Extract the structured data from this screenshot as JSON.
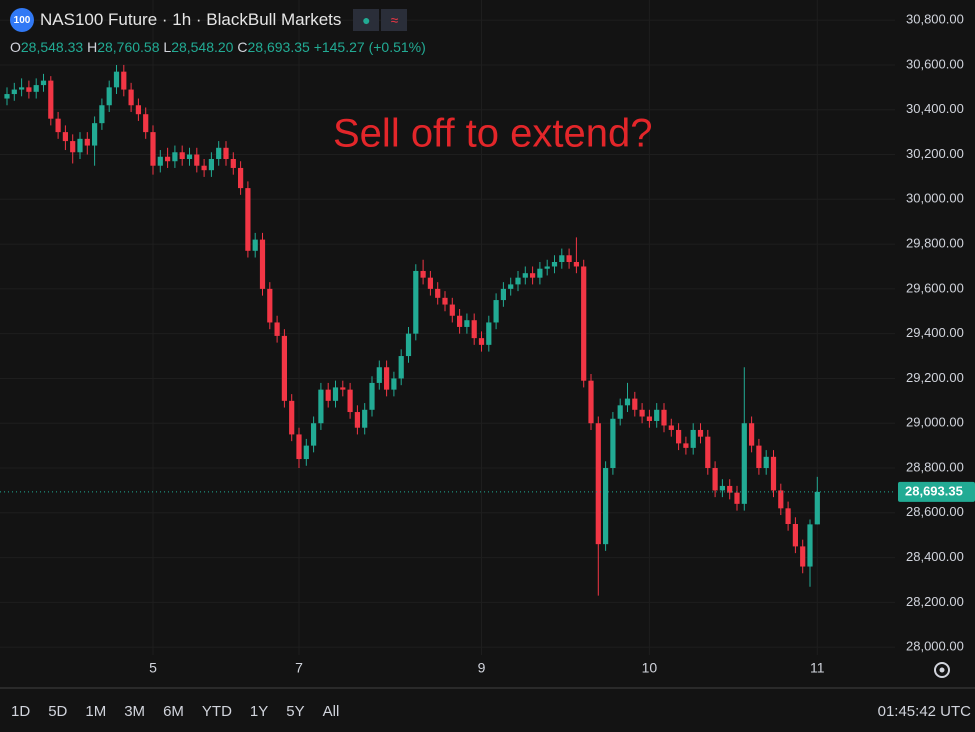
{
  "header": {
    "badge": "100",
    "title": "NAS100 Future · 1h · BlackBull Markets",
    "open_label": "O",
    "open": "28,548.33",
    "high_label": "H",
    "high": "28,760.58",
    "low_label": "L",
    "low": "28,548.20",
    "close_label": "C",
    "close": "28,693.35",
    "change": "+145.27 (+0.51%)"
  },
  "toolbar": {
    "ranges": [
      "1D",
      "5D",
      "1M",
      "3M",
      "6M",
      "YTD",
      "1Y",
      "5Y",
      "All"
    ],
    "clock": "01:45:42 UTC"
  },
  "chart_data": {
    "type": "candlestick",
    "annotation": "Sell off to extend?",
    "up_color": "#22ab94",
    "down_color": "#f23645",
    "grid": true,
    "last_price_line": true,
    "ylim": [
      27965,
      30890
    ],
    "yticks": [
      {
        "value": 28000,
        "label": "28,000.00"
      },
      {
        "value": 28200,
        "label": "28,200.00"
      },
      {
        "value": 28400,
        "label": "28,400.00"
      },
      {
        "value": 28600,
        "label": "28,600.00"
      },
      {
        "value": 28800,
        "label": "28,800.00"
      },
      {
        "value": 29000,
        "label": "29,000.00"
      },
      {
        "value": 29200,
        "label": "29,200.00"
      },
      {
        "value": 29400,
        "label": "29,400.00"
      },
      {
        "value": 29600,
        "label": "29,600.00"
      },
      {
        "value": 29800,
        "label": "29,800.00"
      },
      {
        "value": 30000,
        "label": "30,000.00"
      },
      {
        "value": 30200,
        "label": "30,200.00"
      },
      {
        "value": 30400,
        "label": "30,400.00"
      },
      {
        "value": 30600,
        "label": "30,600.00"
      },
      {
        "value": 30800,
        "label": "30,800.00"
      }
    ],
    "categories": [
      null,
      null,
      null,
      null,
      null,
      null,
      null,
      null,
      null,
      null,
      null,
      null,
      null,
      null,
      null,
      null,
      null,
      null,
      null,
      null,
      "5",
      null,
      null,
      null,
      null,
      null,
      null,
      null,
      null,
      null,
      null,
      null,
      null,
      null,
      null,
      null,
      null,
      null,
      null,
      null,
      "7",
      null,
      null,
      null,
      null,
      null,
      null,
      null,
      null,
      null,
      null,
      null,
      null,
      null,
      null,
      null,
      null,
      null,
      null,
      null,
      null,
      null,
      null,
      null,
      null,
      "9",
      null,
      null,
      null,
      null,
      null,
      null,
      null,
      null,
      null,
      null,
      null,
      null,
      null,
      null,
      null,
      null,
      null,
      null,
      null,
      null,
      null,
      null,
      "10",
      null,
      null,
      null,
      null,
      null,
      null,
      null,
      null,
      null,
      null,
      null,
      null,
      null,
      null,
      null,
      null,
      null,
      null,
      null,
      null,
      null,
      null,
      "11"
    ],
    "open": [
      30450,
      30470,
      30490,
      30500,
      30480,
      30510,
      30530,
      30360,
      30300,
      30260,
      30210,
      30270,
      30240,
      30340,
      30420,
      30500,
      30570,
      30490,
      30420,
      30380,
      30300,
      30150,
      30190,
      30170,
      30210,
      30180,
      30200,
      30150,
      30130,
      30180,
      30230,
      30180,
      30140,
      30050,
      29770,
      29820,
      29600,
      29450,
      29390,
      29100,
      28950,
      28840,
      28900,
      29000,
      29150,
      29100,
      29160,
      29150,
      29050,
      28980,
      29060,
      29180,
      29250,
      29150,
      29200,
      29300,
      29400,
      29680,
      29650,
      29600,
      29560,
      29530,
      29480,
      29430,
      29460,
      29380,
      29350,
      29450,
      29550,
      29600,
      29620,
      29650,
      29670,
      29650,
      29690,
      29700,
      29720,
      29750,
      29720,
      29700,
      29190,
      29000,
      28460,
      28800,
      29020,
      29080,
      29110,
      29060,
      29030,
      29010,
      29060,
      28990,
      28970,
      28910,
      28890,
      28970,
      28940,
      28800,
      28700,
      28720,
      28690,
      28640,
      29000,
      28900,
      28800,
      28850,
      28700,
      28620,
      28550,
      28450,
      28360,
      28548.33
    ],
    "high": [
      30500,
      30520,
      30540,
      30530,
      30540,
      30560,
      30550,
      30390,
      30330,
      30290,
      30300,
      30300,
      30370,
      30450,
      30530,
      30600,
      30600,
      30520,
      30450,
      30410,
      30330,
      30220,
      30230,
      30240,
      30240,
      30230,
      30230,
      30180,
      30210,
      30260,
      30260,
      30210,
      30170,
      30080,
      29850,
      29850,
      29630,
      29480,
      29420,
      29130,
      28980,
      28930,
      29030,
      29180,
      29180,
      29190,
      29190,
      29180,
      29080,
      29090,
      29210,
      29280,
      29280,
      29230,
      29330,
      29430,
      29710,
      29730,
      29680,
      29630,
      29590,
      29560,
      29510,
      29490,
      29490,
      29410,
      29480,
      29580,
      29630,
      29650,
      29680,
      29700,
      29700,
      29720,
      29730,
      29750,
      29780,
      29780,
      29830,
      29730,
      29220,
      29030,
      28830,
      29050,
      29110,
      29180,
      29140,
      29090,
      29060,
      29090,
      29090,
      29020,
      29000,
      28940,
      29000,
      29000,
      28970,
      28830,
      28750,
      28750,
      28720,
      29250,
      29030,
      28930,
      28880,
      28880,
      28730,
      28650,
      28580,
      28480,
      28570,
      28760.58
    ],
    "low": [
      30420,
      30440,
      30460,
      30450,
      30450,
      30480,
      30330,
      30270,
      30220,
      30160,
      30180,
      30200,
      30150,
      30310,
      30390,
      30470,
      30460,
      30390,
      30350,
      30270,
      30110,
      30120,
      30140,
      30140,
      30150,
      30150,
      30120,
      30100,
      30100,
      30150,
      30150,
      30110,
      30020,
      29740,
      29740,
      29570,
      29420,
      29360,
      29070,
      28920,
      28800,
      28810,
      28870,
      28970,
      29070,
      29070,
      29120,
      29020,
      28950,
      28950,
      29030,
      29150,
      29120,
      29120,
      29170,
      29270,
      29370,
      29620,
      29570,
      29530,
      29500,
      29450,
      29400,
      29400,
      29350,
      29320,
      29320,
      29420,
      29520,
      29570,
      29590,
      29620,
      29620,
      29620,
      29660,
      29670,
      29690,
      29690,
      29670,
      29160,
      28970,
      28230,
      28430,
      28770,
      28990,
      29050,
      29030,
      29000,
      28980,
      28980,
      28960,
      28940,
      28880,
      28860,
      28860,
      28910,
      28770,
      28670,
      28670,
      28660,
      28610,
      28610,
      28870,
      28770,
      28770,
      28670,
      28590,
      28520,
      28420,
      28330,
      28270,
      28548.2
    ],
    "close": [
      30470,
      30490,
      30500,
      30480,
      30510,
      30530,
      30360,
      30300,
      30260,
      30210,
      30270,
      30240,
      30340,
      30420,
      30500,
      30570,
      30490,
      30420,
      30380,
      30300,
      30150,
      30190,
      30170,
      30210,
      30180,
      30200,
      30150,
      30130,
      30180,
      30230,
      30180,
      30140,
      30050,
      29770,
      29820,
      29600,
      29450,
      29390,
      29100,
      28950,
      28840,
      28900,
      29000,
      29150,
      29100,
      29160,
      29150,
      29050,
      28980,
      29060,
      29180,
      29250,
      29150,
      29200,
      29300,
      29400,
      29680,
      29650,
      29600,
      29560,
      29530,
      29480,
      29430,
      29460,
      29380,
      29350,
      29450,
      29550,
      29600,
      29620,
      29650,
      29670,
      29650,
      29690,
      29700,
      29720,
      29750,
      29720,
      29700,
      29190,
      29000,
      28460,
      28800,
      29020,
      29080,
      29110,
      29060,
      29030,
      29010,
      29060,
      28990,
      28970,
      28910,
      28890,
      28970,
      28940,
      28800,
      28700,
      28720,
      28690,
      28640,
      29000,
      28900,
      28800,
      28850,
      28700,
      28620,
      28550,
      28450,
      28360,
      28548.33,
      28693.35
    ]
  }
}
